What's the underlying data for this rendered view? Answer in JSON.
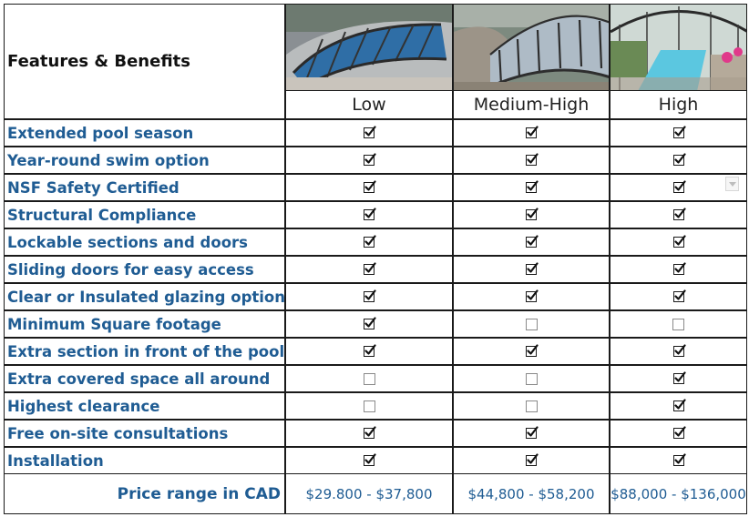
{
  "header": {
    "features_title": "Features & Benefits",
    "tiers": [
      "Low",
      "Medium-High",
      "High"
    ],
    "images": [
      "low-profile-enclosure-photo",
      "medium-high-enclosure-photo",
      "high-enclosure-photo"
    ]
  },
  "rows": [
    {
      "label": "Extended pool season",
      "values": [
        true,
        true,
        true
      ]
    },
    {
      "label": "Year-round swim option",
      "values": [
        true,
        true,
        true
      ]
    },
    {
      "label": "NSF Safety Certified",
      "values": [
        true,
        true,
        true
      ]
    },
    {
      "label": "Structural Compliance",
      "values": [
        true,
        true,
        true
      ]
    },
    {
      "label": "Lockable sections and doors",
      "values": [
        true,
        true,
        true
      ]
    },
    {
      "label": "Sliding doors for easy access",
      "values": [
        true,
        true,
        true
      ]
    },
    {
      "label": "Clear or Insulated glazing option",
      "values": [
        true,
        true,
        true
      ]
    },
    {
      "label": "Minimum Square footage",
      "values": [
        true,
        false,
        false
      ]
    },
    {
      "label": "Extra section in front of the pool",
      "values": [
        true,
        true,
        true
      ]
    },
    {
      "label": "Extra covered space all around",
      "values": [
        false,
        false,
        true
      ]
    },
    {
      "label": "Highest clearance",
      "values": [
        false,
        false,
        true
      ]
    },
    {
      "label": "Free on-site consultations",
      "values": [
        true,
        true,
        true
      ]
    },
    {
      "label": "Installation",
      "values": [
        true,
        true,
        true
      ]
    }
  ],
  "price": {
    "label": "Price range in CAD",
    "values": [
      "$29.800 - $37,800",
      "$44,800 - $58,200",
      "$88,000 - $136,000"
    ]
  },
  "colors": {
    "label_blue": "#1f5c93",
    "border": "#1a1a1a"
  }
}
